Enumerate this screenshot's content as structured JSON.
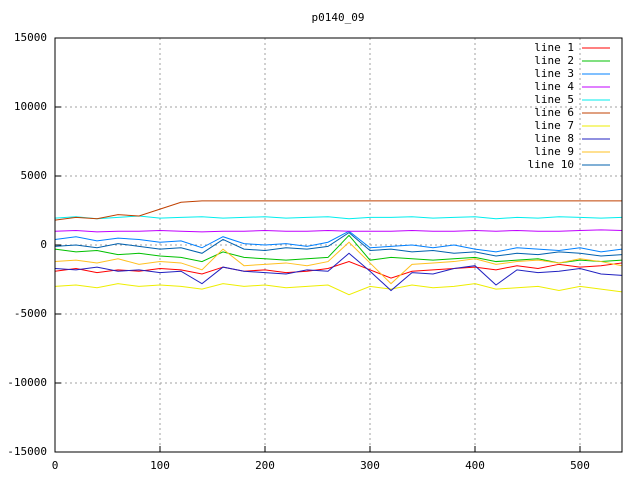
{
  "chart_data": {
    "type": "line",
    "title": "p0140_09",
    "x": [
      0,
      20,
      40,
      60,
      80,
      100,
      120,
      140,
      160,
      180,
      200,
      220,
      240,
      260,
      280,
      300,
      320,
      340,
      360,
      380,
      400,
      420,
      440,
      460,
      480,
      500,
      520,
      540
    ],
    "xlim": [
      0,
      540
    ],
    "xticks": [
      0,
      100,
      200,
      300,
      400,
      500
    ],
    "ylim": [
      -15000,
      15000
    ],
    "yticks": [
      -15000,
      -10000,
      -5000,
      0,
      5000,
      10000,
      15000
    ],
    "grid": true,
    "legend": "top-right",
    "series": [
      {
        "name": "line 1",
        "color": "#ff0000",
        "values": [
          -1900,
          -1700,
          -2000,
          -1800,
          -1900,
          -1700,
          -1800,
          -2100,
          -1600,
          -1900,
          -1800,
          -2000,
          -1900,
          -1700,
          -1200,
          -1800,
          -2400,
          -1900,
          -1800,
          -1700,
          -1600,
          -1800,
          -1500,
          -1700,
          -1400,
          -1600,
          -1500,
          -1300
        ]
      },
      {
        "name": "line 2",
        "color": "#00c000",
        "values": [
          -300,
          -500,
          -400,
          -700,
          -600,
          -800,
          -900,
          -1200,
          -500,
          -900,
          -1000,
          -1100,
          -1000,
          -900,
          700,
          -1100,
          -900,
          -1000,
          -1100,
          -1000,
          -900,
          -1200,
          -1100,
          -1000,
          -1300,
          -1100,
          -1200,
          -1100
        ]
      },
      {
        "name": "line 3",
        "color": "#0080ff",
        "values": [
          400,
          600,
          300,
          500,
          400,
          200,
          300,
          -200,
          600,
          100,
          0,
          100,
          -100,
          200,
          1000,
          -200,
          -100,
          0,
          -200,
          0,
          -300,
          -500,
          -200,
          -300,
          -400,
          -200,
          -500,
          -300
        ]
      },
      {
        "name": "line 4",
        "color": "#c000ff",
        "values": [
          1000,
          1050,
          950,
          1000,
          1000,
          1050,
          1000,
          950,
          1000,
          1000,
          1050,
          1000,
          1000,
          1050,
          1000,
          1000,
          1000,
          1050,
          1000,
          1000,
          1050,
          1000,
          1050,
          1000,
          1000,
          1050,
          1100,
          1050
        ]
      },
      {
        "name": "line 5",
        "color": "#00eeee",
        "values": [
          1950,
          2050,
          1900,
          2000,
          2100,
          1950,
          2000,
          2050,
          1950,
          2000,
          2050,
          1950,
          2000,
          2050,
          1900,
          2000,
          2000,
          2050,
          1950,
          2000,
          2050,
          1900,
          2000,
          1950,
          2050,
          2000,
          1950,
          2000
        ]
      },
      {
        "name": "line 6",
        "color": "#c04000",
        "values": [
          1800,
          2000,
          1900,
          2200,
          2100,
          2600,
          3100,
          3200,
          3200,
          3200,
          3200,
          3200,
          3200,
          3200,
          3200,
          3200,
          3200,
          3200,
          3200,
          3200,
          3200,
          3200,
          3200,
          3200,
          3200,
          3200,
          3200,
          3200
        ]
      },
      {
        "name": "line 7",
        "color": "#eeee00",
        "values": [
          -3000,
          -2900,
          -3100,
          -2800,
          -3000,
          -2900,
          -3000,
          -3200,
          -2800,
          -3000,
          -2900,
          -3100,
          -3000,
          -2900,
          -3600,
          -3000,
          -3200,
          -2900,
          -3100,
          -3000,
          -2800,
          -3200,
          -3100,
          -3000,
          -3300,
          -3000,
          -3200,
          -3400
        ]
      },
      {
        "name": "line 8",
        "color": "#2020c0",
        "values": [
          -1700,
          -1800,
          -1600,
          -1900,
          -1800,
          -2000,
          -1900,
          -2800,
          -1600,
          -1900,
          -2000,
          -2100,
          -1800,
          -1900,
          -600,
          -1900,
          -3300,
          -2000,
          -2100,
          -1700,
          -1500,
          -2900,
          -1800,
          -2000,
          -1900,
          -1700,
          -2100,
          -2200
        ]
      },
      {
        "name": "line 9",
        "color": "#ffc020",
        "values": [
          -1200,
          -1100,
          -1300,
          -1000,
          -1400,
          -1200,
          -1300,
          -1800,
          -300,
          -1500,
          -1400,
          -1300,
          -1500,
          -1200,
          200,
          -1300,
          -2800,
          -1400,
          -1300,
          -1200,
          -1000,
          -1400,
          -1200,
          -1100,
          -1300,
          -1000,
          -1200,
          -1500
        ]
      },
      {
        "name": "line 10",
        "color": "#0060ad",
        "values": [
          -100,
          0,
          -200,
          100,
          -100,
          -300,
          -200,
          -600,
          400,
          -300,
          -400,
          -200,
          -300,
          -100,
          900,
          -400,
          -300,
          -500,
          -400,
          -600,
          -500,
          -800,
          -600,
          -700,
          -500,
          -600,
          -800,
          -700
        ]
      }
    ]
  }
}
